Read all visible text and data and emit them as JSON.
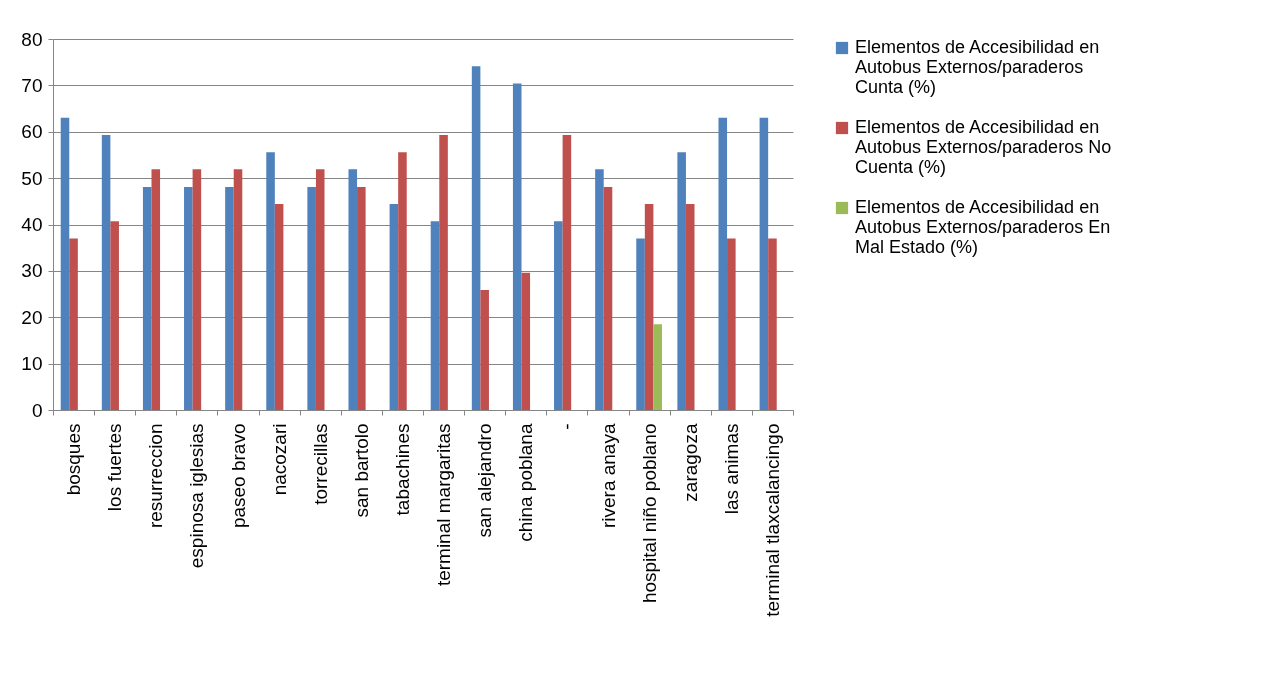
{
  "chart_data": {
    "type": "bar",
    "categories": [
      "bosques",
      "los fuertes",
      "resurreccion",
      "espinosa iglesias",
      "paseo bravo",
      "nacozari",
      "torrecillas",
      "san bartolo",
      "tabachines",
      "terminal margaritas",
      "san alejandro",
      "china poblana",
      "-",
      "rivera anaya",
      "hospital niño poblano",
      "zaragoza",
      "las animas",
      "terminal tlaxcalancingo"
    ],
    "series": [
      {
        "name": "Elementos de Accesibilidad en Autobus  Externos/paraderos Cunta (%)",
        "color": "#4f81bd",
        "values": [
          63,
          59.3,
          48.1,
          48.1,
          48.1,
          55.6,
          48.1,
          51.9,
          44.4,
          40.7,
          74.1,
          70.4,
          40.7,
          51.9,
          37,
          55.6,
          63,
          63
        ]
      },
      {
        "name": "Elementos de Accesibilidad en Autobus  Externos/paraderos No Cuenta (%)",
        "color": "#c0504d",
        "values": [
          37,
          40.7,
          51.9,
          51.9,
          51.9,
          44.4,
          51.9,
          48.1,
          55.6,
          59.3,
          25.9,
          29.6,
          59.3,
          48.1,
          44.4,
          44.4,
          37,
          37
        ]
      },
      {
        "name": "Elementos de Accesibilidad en Autobus  Externos/paraderos En Mal Estado (%)",
        "color": "#9bbb59",
        "values": [
          null,
          null,
          null,
          null,
          null,
          null,
          null,
          null,
          null,
          null,
          null,
          null,
          null,
          null,
          18.5,
          null,
          null,
          null
        ]
      }
    ],
    "ylim": [
      0,
      80
    ],
    "yticks": [
      0,
      10,
      20,
      30,
      40,
      50,
      60,
      70,
      80
    ],
    "grid": "y",
    "legend": "right"
  }
}
